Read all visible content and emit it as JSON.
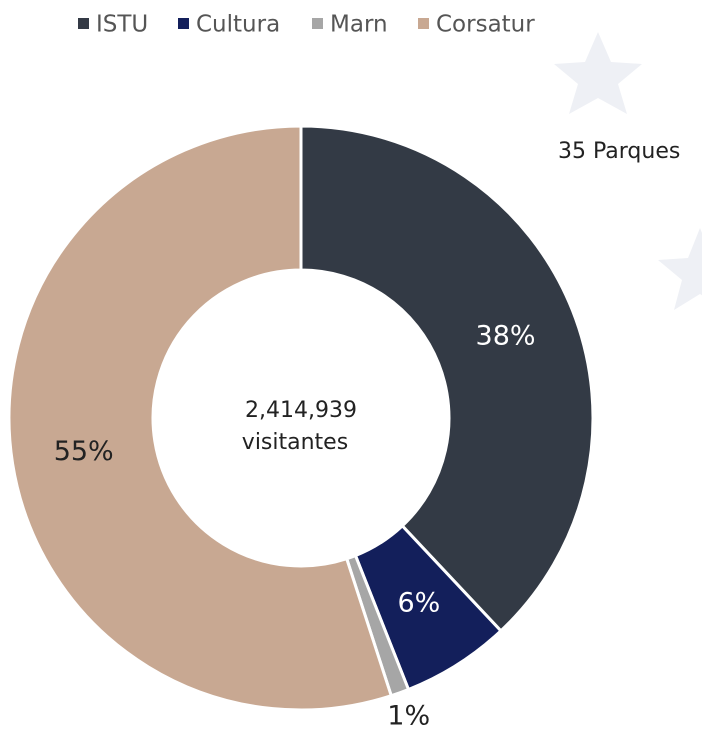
{
  "chart_data": {
    "type": "donut",
    "categories": [
      "ISTU",
      "Cultura",
      "Marn",
      "Corsatur"
    ],
    "values": [
      38,
      6,
      1,
      55
    ],
    "value_labels": [
      "38%",
      "6%",
      "1%",
      "55%"
    ],
    "colors": [
      "#333a45",
      "#131f5b",
      "#a6a6a6",
      "#c8a892"
    ],
    "center_text": [
      "2,414,939",
      "visitantes"
    ],
    "annotation": "35 Parques",
    "legend": "top"
  }
}
